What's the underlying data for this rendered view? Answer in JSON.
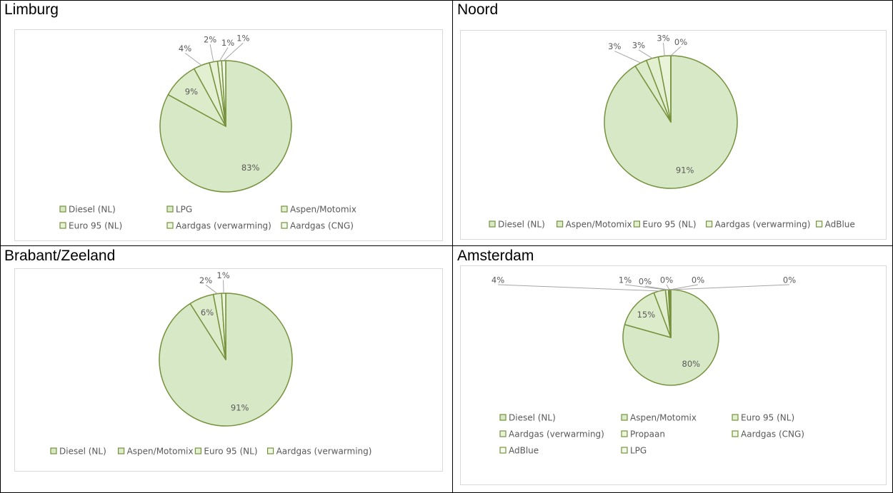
{
  "chart_data": [
    {
      "type": "pie",
      "title": "Limburg",
      "categories": [
        "Diesel (NL)",
        "LPG",
        "Aspen/Motomix",
        "Euro 95 (NL)",
        "Aardgas (verwarming)",
        "Aardgas (CNG)"
      ],
      "values": [
        83,
        9,
        4,
        2,
        1,
        1
      ],
      "labels": [
        "83%",
        "9%",
        "4%",
        "2%",
        "1%",
        "1%"
      ],
      "colors": [
        "#d7e8c6",
        "#dcecca",
        "#e2efd0",
        "#e7f2d7",
        "#edf5df",
        "#f3f9ea"
      ],
      "legend": "bottom"
    },
    {
      "type": "pie",
      "title": "Noord",
      "categories": [
        "Diesel (NL)",
        "Aspen/Motomix",
        "Euro 95 (NL)",
        "Aardgas (verwarming)",
        "AdBlue"
      ],
      "values": [
        91,
        3,
        3,
        3,
        0
      ],
      "labels": [
        "91%",
        "3%",
        "3%",
        "3%",
        "0%"
      ],
      "colors": [
        "#d7e8c6",
        "#dcecca",
        "#e2efd0",
        "#e9f3da",
        "#f3f9ea"
      ],
      "legend": "bottom"
    },
    {
      "type": "pie",
      "title": "Brabant/Zeeland",
      "categories": [
        "Diesel (NL)",
        "Aspen/Motomix",
        "Euro 95 (NL)",
        "Aardgas (verwarming)"
      ],
      "values": [
        91,
        6,
        2,
        1
      ],
      "labels": [
        "91%",
        "6%",
        "2%",
        "1%"
      ],
      "colors": [
        "#d7e8c6",
        "#dcecca",
        "#e4f0d3",
        "#eef6e2"
      ],
      "legend": "bottom"
    },
    {
      "type": "pie",
      "title": "Amsterdam",
      "categories": [
        "Diesel (NL)",
        "Aspen/Motomix",
        "Euro 95 (NL)",
        "Aardgas (verwarming)",
        "Propaan",
        "Aardgas (CNG)",
        "AdBlue",
        "LPG"
      ],
      "values": [
        80,
        15,
        4,
        1,
        0.2,
        0.2,
        0.2,
        0.2
      ],
      "labels": [
        "80%",
        "15%",
        "4%",
        "1%",
        "0%",
        "0%",
        "0%",
        "0%"
      ],
      "colors": [
        "#d7e8c6",
        "#dcecca",
        "#e2efd0",
        "#e7f2d7",
        "#edf5df",
        "#f1f7e6",
        "#f8fbf2",
        "#f3f9ea"
      ],
      "legend": "bottom"
    }
  ]
}
